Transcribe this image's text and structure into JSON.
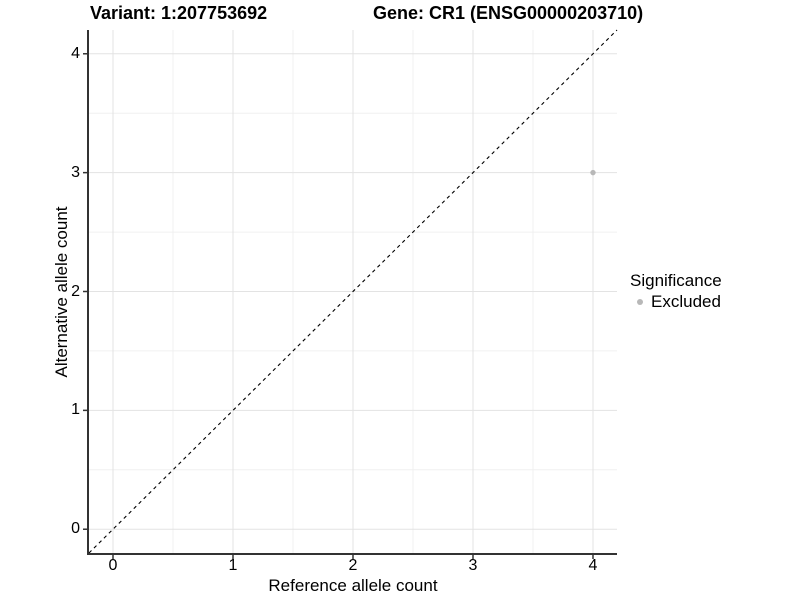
{
  "chart_data": {
    "type": "scatter",
    "title_left": "Variant: 1:207753692",
    "title_right": "Gene: CR1 (ENSG00000203710)",
    "xlabel": "Reference allele count",
    "ylabel": "Alternative allele count",
    "xlim": [
      -0.2,
      4.2
    ],
    "ylim": [
      -0.2,
      4.2
    ],
    "x_ticks": [
      0,
      1,
      2,
      3,
      4
    ],
    "y_ticks": [
      0,
      1,
      2,
      3,
      4
    ],
    "x_minor_ticks": [
      0.5,
      1.5,
      2.5,
      3.5
    ],
    "y_minor_ticks": [
      0.5,
      1.5,
      2.5,
      3.5
    ],
    "grid": true,
    "reference_line": {
      "kind": "identity",
      "equation": "y = x",
      "style": "dashed",
      "color": "#000000"
    },
    "series": [
      {
        "name": "Excluded",
        "color": "#b8b8b8",
        "point_radius": 2.7,
        "points": [
          {
            "x": 4,
            "y": 3
          }
        ]
      }
    ],
    "legend": {
      "position": "right",
      "title": "Significance",
      "entries": [
        {
          "label": "Excluded",
          "color": "#b8b8b8"
        }
      ]
    },
    "colors": {
      "background": "#ffffff",
      "grid_major": "#e3e3e3",
      "grid_minor": "#f0f0f0",
      "axis_line": "#333333",
      "tick_mark": "#333333",
      "text": "#000000"
    }
  }
}
